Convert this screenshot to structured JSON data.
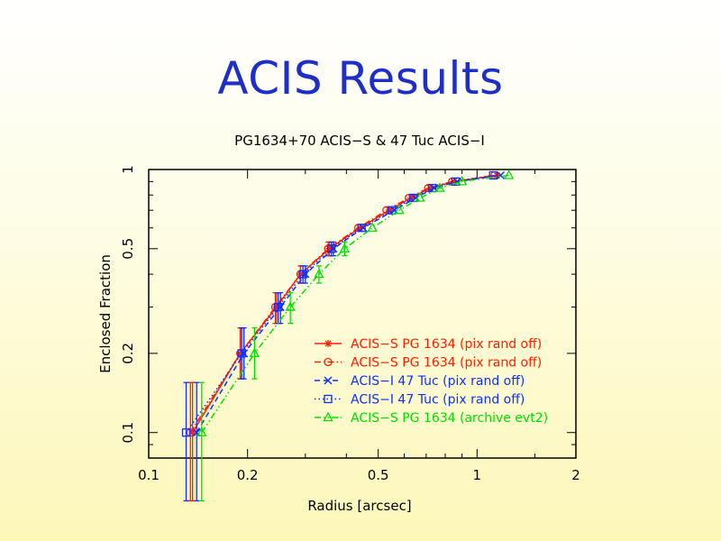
{
  "slide": {
    "title": "ACIS Results"
  },
  "chart_data": {
    "type": "line",
    "title": "PG1634+70 ACIS−S & 47 Tuc ACIS−I",
    "xlabel": "Radius [arcsec]",
    "ylabel": "Enclosed Fraction",
    "x_scale": "log",
    "y_scale": "log",
    "xlim": [
      0.1,
      2
    ],
    "ylim": [
      0.08,
      1
    ],
    "x_ticks": [
      0.1,
      0.2,
      0.5,
      1,
      2
    ],
    "x_tick_labels": [
      "0.1",
      "0.2",
      "0.5",
      "1",
      "2"
    ],
    "y_ticks": [
      0.1,
      0.2,
      0.5,
      1
    ],
    "y_tick_labels": [
      "0.1",
      "0.2",
      "0.5",
      "1"
    ],
    "legend_position": "lower-right",
    "series": [
      {
        "name": "ACIS−S PG 1634 (pix rand off)",
        "color": "#ff2000",
        "marker": "star",
        "line": "solid",
        "x": [
          0.136,
          0.19,
          0.245,
          0.29,
          0.355,
          0.44,
          0.54,
          0.63,
          0.72,
          0.85,
          1.15
        ],
        "y": [
          0.1,
          0.2,
          0.3,
          0.4,
          0.5,
          0.6,
          0.7,
          0.78,
          0.85,
          0.9,
          0.95
        ],
        "err_low": [
          0.045,
          0.04,
          0.04,
          0.03,
          0.03,
          0.0,
          0.0,
          0.0,
          0.0,
          0.0,
          0.0
        ],
        "err_high": [
          0.055,
          0.05,
          0.04,
          0.03,
          0.03,
          0.0,
          0.0,
          0.0,
          0.0,
          0.0,
          0.0
        ]
      },
      {
        "name": "ACIS−S PG 1634 (pix rand off)",
        "color": "#ff2000",
        "marker": "circle",
        "line": "dashdot",
        "x": [
          0.134,
          0.19,
          0.243,
          0.29,
          0.352,
          0.435,
          0.53,
          0.62,
          0.71,
          0.84,
          1.13
        ],
        "y": [
          0.1,
          0.2,
          0.3,
          0.4,
          0.5,
          0.6,
          0.7,
          0.78,
          0.85,
          0.9,
          0.95
        ],
        "err_low": [
          0.045,
          0.04,
          0.04,
          0.03,
          0.03,
          0.0,
          0.0,
          0.0,
          0.0,
          0.0,
          0.0
        ],
        "err_high": [
          0.055,
          0.05,
          0.04,
          0.03,
          0.03,
          0.0,
          0.0,
          0.0,
          0.0,
          0.0,
          0.0
        ]
      },
      {
        "name": "ACIS−I 47 Tuc (pix rand off)",
        "color": "#1030ff",
        "marker": "cross",
        "line": "dashed",
        "x": [
          0.14,
          0.195,
          0.252,
          0.3,
          0.365,
          0.45,
          0.56,
          0.65,
          0.74,
          0.87,
          1.18
        ],
        "y": [
          0.1,
          0.2,
          0.3,
          0.4,
          0.5,
          0.6,
          0.7,
          0.78,
          0.85,
          0.9,
          0.95
        ],
        "err_low": [
          0.045,
          0.04,
          0.04,
          0.03,
          0.03,
          0.0,
          0.0,
          0.0,
          0.0,
          0.0,
          0.0
        ],
        "err_high": [
          0.055,
          0.05,
          0.04,
          0.03,
          0.03,
          0.0,
          0.0,
          0.0,
          0.0,
          0.0,
          0.0
        ]
      },
      {
        "name": "ACIS−I 47 Tuc (pix rand off)",
        "color": "#1030ff",
        "marker": "square",
        "line": "dotted",
        "x": [
          0.13,
          0.192,
          0.248,
          0.295,
          0.36,
          0.445,
          0.55,
          0.64,
          0.73,
          0.86,
          1.12
        ],
        "y": [
          0.1,
          0.2,
          0.3,
          0.4,
          0.5,
          0.6,
          0.7,
          0.78,
          0.85,
          0.9,
          0.95
        ],
        "err_low": [
          0.045,
          0.04,
          0.04,
          0.03,
          0.03,
          0.0,
          0.0,
          0.0,
          0.0,
          0.0,
          0.0
        ],
        "err_high": [
          0.055,
          0.05,
          0.04,
          0.03,
          0.03,
          0.0,
          0.0,
          0.0,
          0.0,
          0.0,
          0.0
        ]
      },
      {
        "name": "ACIS−S PG 1634 (archive evt2)",
        "color": "#00e000",
        "marker": "triangle",
        "line": "dashdotdot",
        "x": [
          0.145,
          0.21,
          0.27,
          0.33,
          0.395,
          0.48,
          0.58,
          0.67,
          0.77,
          0.9,
          1.25
        ],
        "y": [
          0.1,
          0.2,
          0.3,
          0.4,
          0.5,
          0.6,
          0.7,
          0.78,
          0.85,
          0.9,
          0.95
        ],
        "err_low": [
          0.045,
          0.04,
          0.04,
          0.03,
          0.03,
          0.0,
          0.0,
          0.0,
          0.0,
          0.0,
          0.0
        ],
        "err_high": [
          0.055,
          0.05,
          0.04,
          0.03,
          0.03,
          0.0,
          0.0,
          0.0,
          0.0,
          0.0,
          0.0
        ]
      }
    ]
  }
}
